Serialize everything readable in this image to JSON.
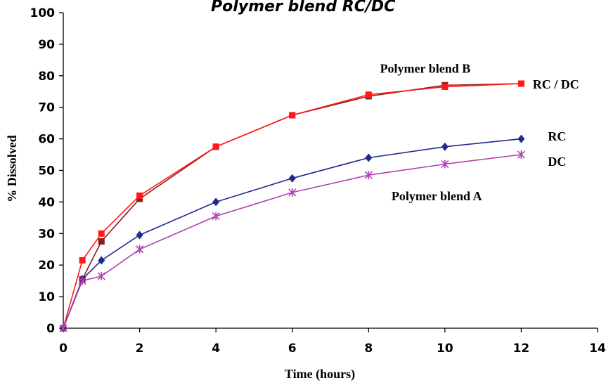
{
  "chart_data": {
    "type": "line",
    "title": "",
    "top_text": "Polymer blend RC/DC",
    "xlabel": "Time (hours)",
    "ylabel": "% Dissolved",
    "xlim": [
      0,
      14
    ],
    "ylim": [
      0,
      100
    ],
    "xticks": [
      0,
      2,
      4,
      6,
      8,
      10,
      12,
      14
    ],
    "yticks": [
      0,
      10,
      20,
      30,
      40,
      50,
      60,
      70,
      80,
      90,
      100
    ],
    "grid": false,
    "series": [
      {
        "key": "b_rc",
        "color": "#8B1A1A",
        "marker": "square",
        "x": [
          0,
          0.5,
          1,
          2,
          4,
          6,
          8,
          10,
          12
        ],
        "y": [
          0,
          15.5,
          27.5,
          41,
          57.5,
          67.5,
          73.5,
          77,
          77.5
        ]
      },
      {
        "key": "b_dc",
        "color": "#FF1A1A",
        "marker": "square",
        "x": [
          0,
          0.5,
          1,
          2,
          4,
          6,
          8,
          10,
          12
        ],
        "y": [
          0,
          21.5,
          30,
          42,
          57.5,
          67.5,
          74,
          76.5,
          77.5
        ]
      },
      {
        "key": "a_rc",
        "color": "#1F2A8C",
        "marker": "diamond",
        "x": [
          0,
          0.5,
          1,
          2,
          4,
          6,
          8,
          10,
          12
        ],
        "y": [
          0,
          15.5,
          21.5,
          29.5,
          40,
          47.5,
          54,
          57.5,
          60
        ]
      },
      {
        "key": "a_dc",
        "color": "#B040B0",
        "marker": "x",
        "x": [
          0,
          0.5,
          1,
          2,
          4,
          6,
          8,
          10,
          12
        ],
        "y": [
          0,
          15,
          16.5,
          25,
          35.5,
          43,
          48.5,
          52,
          55
        ]
      }
    ],
    "annotations": [
      {
        "text": "Polymer blend B",
        "x": 8.3,
        "y": 81
      },
      {
        "text": "RC / DC",
        "x": 12.3,
        "y": 76
      },
      {
        "text": "RC",
        "x": 12.7,
        "y": 59.5
      },
      {
        "text": "DC",
        "x": 12.7,
        "y": 51.5
      },
      {
        "text": "Polymer blend A",
        "x": 8.6,
        "y": 40.5
      }
    ]
  }
}
